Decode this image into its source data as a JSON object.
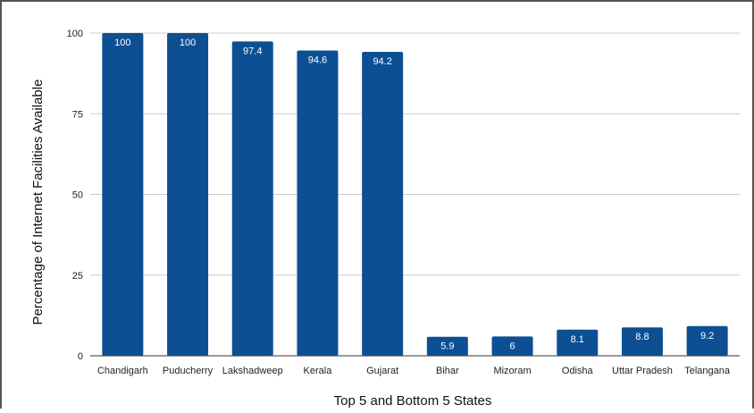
{
  "chart_data": {
    "type": "bar",
    "title": "",
    "xlabel": "Top 5 and Bottom 5 States",
    "ylabel": "Percentage of Internet Facilities Available",
    "categories": [
      "Chandigarh",
      "Puducherry",
      "Lakshadweep",
      "Kerala",
      "Gujarat",
      "Bihar",
      "Mizoram",
      "Odisha",
      "Uttar Pradesh",
      "Telangana"
    ],
    "values": [
      100,
      100,
      97.4,
      94.6,
      94.2,
      5.9,
      6,
      8.1,
      8.8,
      9.2
    ],
    "data_labels": [
      "100",
      "100",
      "97.4",
      "94.6",
      "94.2",
      "5.9",
      "6",
      "8.1",
      "8.8",
      "9.2"
    ],
    "ylim": [
      0,
      100
    ],
    "yticks": [
      0,
      25,
      50,
      75,
      100
    ],
    "grid": true,
    "legend": "none",
    "bar_color": "#0d4f93",
    "grid_color": "#cccccc"
  }
}
